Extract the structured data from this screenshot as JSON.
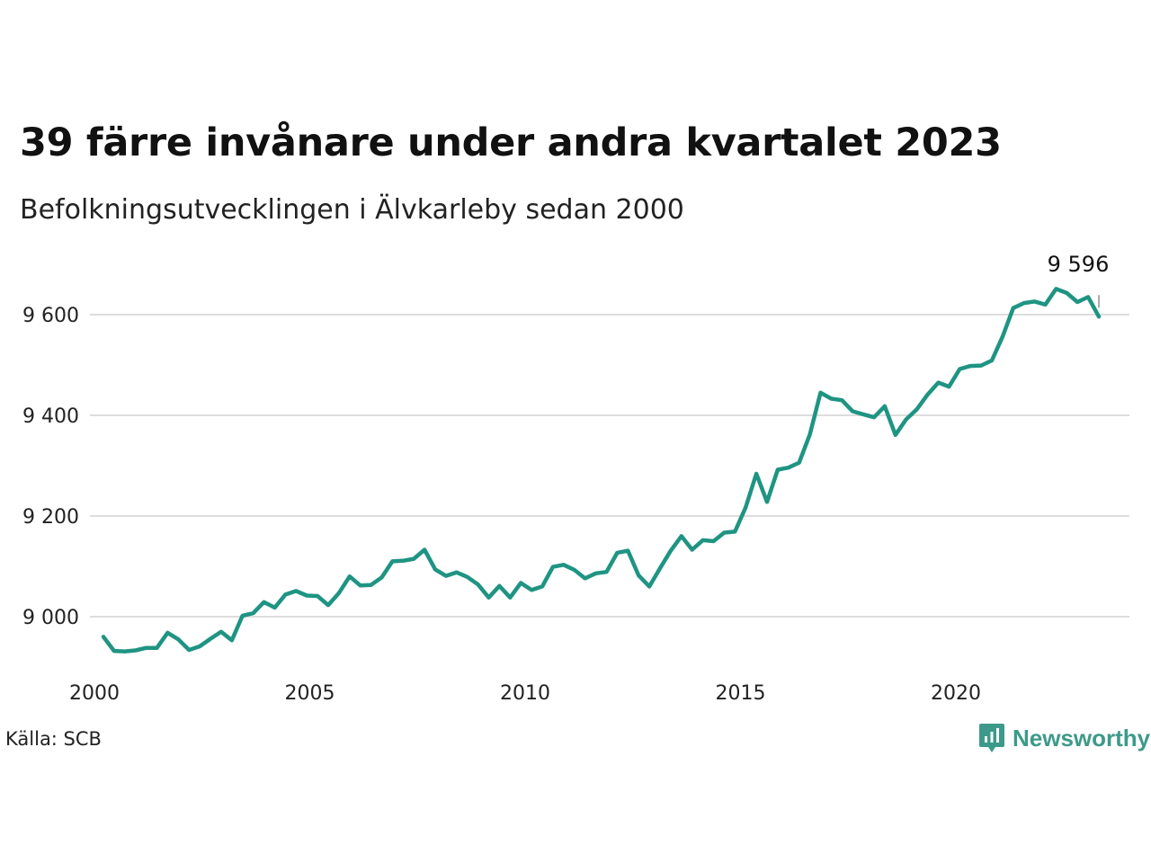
{
  "title": "39 färre invånare under andra kvartalet 2023",
  "subtitle": "Befolkningsutvecklingen i Älvkarleby sedan 2000",
  "source": "Källa: SCB",
  "brand": "Newsworthy",
  "colors": {
    "line": "#1f9483",
    "grid": "#dddddd",
    "brand": "#3d9a8a"
  },
  "chart_data": {
    "type": "line",
    "xlim": [
      2000,
      2024
    ],
    "ylim": [
      8880,
      9680
    ],
    "yticks": [
      9000,
      9200,
      9400,
      9600
    ],
    "ytick_labels": [
      "9 000",
      "9 200",
      "9 400",
      "9 600"
    ],
    "xticks": [
      2000,
      2005,
      2010,
      2015,
      2020
    ],
    "xtick_labels": [
      "2000",
      "2005",
      "2010",
      "2015",
      "2020"
    ],
    "grid": "horizontal",
    "annotation": {
      "text": "9 596",
      "x": 2023.25,
      "y": 9596
    },
    "values": [
      8960,
      8932,
      8931,
      8933,
      8938,
      8938,
      8968,
      8955,
      8934,
      8941,
      8956,
      8970,
      8953,
      9002,
      9007,
      9029,
      9018,
      9044,
      9051,
      9042,
      9041,
      9023,
      9047,
      9080,
      9062,
      9063,
      9078,
      9110,
      9111,
      9115,
      9133,
      9094,
      9081,
      9088,
      9079,
      9064,
      9038,
      9061,
      9038,
      9067,
      9053,
      9060,
      9099,
      9103,
      9093,
      9076,
      9086,
      9089,
      9127,
      9131,
      9082,
      9060,
      9096,
      9131,
      9160,
      9133,
      9152,
      9150,
      9167,
      9169,
      9217,
      9284,
      9228,
      9292,
      9296,
      9306,
      9362,
      9445,
      9433,
      9430,
      9408,
      9402,
      9396,
      9418,
      9361,
      9392,
      9412,
      9441,
      9465,
      9457,
      9492,
      9498,
      9499,
      9509,
      9556,
      9613,
      9623,
      9626,
      9620,
      9651,
      9643,
      9625,
      9635,
      9596
    ]
  }
}
